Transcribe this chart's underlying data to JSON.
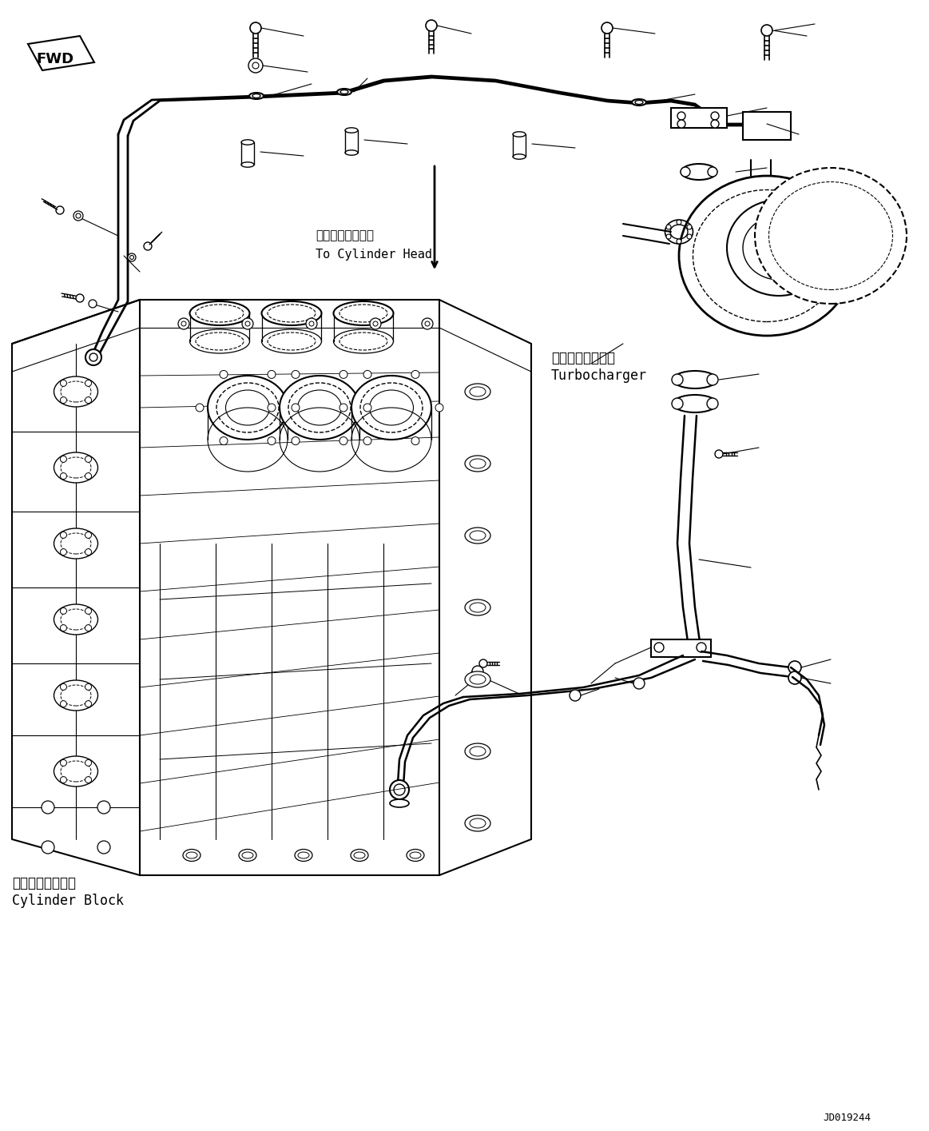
{
  "background_color": "#ffffff",
  "line_color": "#000000",
  "diagram_id": "JD019244",
  "labels": {
    "fwd": "FWD",
    "cylinder_head_jp": "シリンダヘッドへ",
    "cylinder_head_en": "To Cylinder Head",
    "turbocharger_jp": "ターボチャージャ",
    "turbocharger_en": "Turbocharger",
    "cylinder_block_jp": "シリンダブロック",
    "cylinder_block_en": "Cylinder Block"
  },
  "fig_w": 11.63,
  "fig_h": 14.15,
  "dpi": 100
}
